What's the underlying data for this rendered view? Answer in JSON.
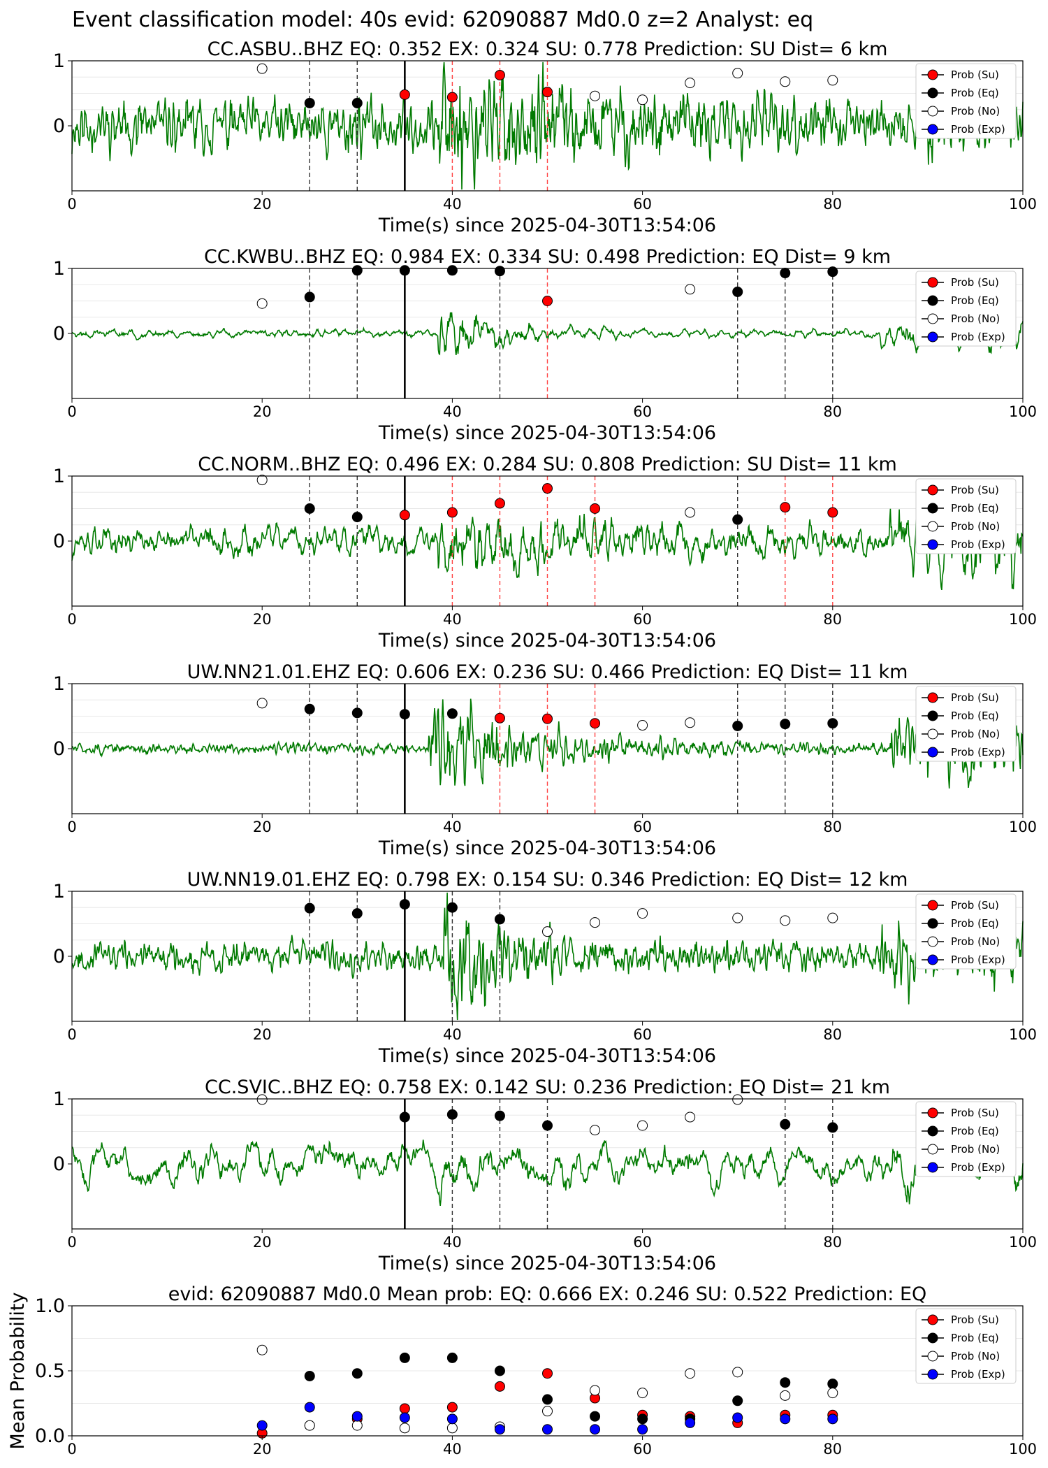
{
  "suptitle": "Event classification model: 40s evid: 62090887 Md0.0 z=2 Analyst: eq",
  "colors": {
    "waveform": "#007a00",
    "su": "#ff0000",
    "eq": "#000000",
    "no": "#ffffff",
    "exp": "#0000ff",
    "pick_su": "#ff4444",
    "pick_eq": "#333333",
    "origin": "#000000"
  },
  "legend": [
    "Prob (Su)",
    "Prob (Eq)",
    "Prob (No)",
    "Prob (Exp)"
  ],
  "chart_data": [
    {
      "type": "line",
      "title": "CC.ASBU..BHZ   EQ: 0.352  EX: 0.324  SU: 0.778   Prediction: SU    Dist= 6 km",
      "xlabel": "Time(s) since 2025-04-30T13:54:06",
      "xlim": [
        0,
        100
      ],
      "ylim": [
        -1,
        1
      ],
      "xticks": [
        "0",
        "20",
        "40",
        "60",
        "80",
        "100"
      ],
      "yticks": [
        "0",
        "1"
      ],
      "waveform": {
        "amp": 0.32,
        "noise": 0.85,
        "onset": 38.5,
        "burst": 0.55,
        "decay": 12,
        "seed": 11,
        "tail_start": 0,
        "tail_amp": 0,
        "smooth": 1
      },
      "origin_line": 35,
      "picks": [
        {
          "x": 25,
          "type": "eq"
        },
        {
          "x": 30,
          "type": "eq"
        },
        {
          "x": 40,
          "type": "su"
        },
        {
          "x": 45,
          "type": "su"
        },
        {
          "x": 50,
          "type": "su"
        }
      ],
      "points": [
        {
          "x": 20,
          "y": 0.88,
          "type": "no"
        },
        {
          "x": 25,
          "y": 0.35,
          "type": "eq"
        },
        {
          "x": 30,
          "y": 0.35,
          "type": "eq"
        },
        {
          "x": 35,
          "y": 0.48,
          "type": "su"
        },
        {
          "x": 40,
          "y": 0.44,
          "type": "su"
        },
        {
          "x": 45,
          "y": 0.78,
          "type": "su"
        },
        {
          "x": 50,
          "y": 0.52,
          "type": "su"
        },
        {
          "x": 55,
          "y": 0.46,
          "type": "no"
        },
        {
          "x": 60,
          "y": 0.4,
          "type": "no"
        },
        {
          "x": 65,
          "y": 0.66,
          "type": "no"
        },
        {
          "x": 70,
          "y": 0.81,
          "type": "no"
        },
        {
          "x": 75,
          "y": 0.68,
          "type": "no"
        },
        {
          "x": 80,
          "y": 0.7,
          "type": "no"
        }
      ]
    },
    {
      "type": "line",
      "title": "CC.KWBU..BHZ   EQ: 0.984  EX: 0.334  SU: 0.498   Prediction: EQ    Dist= 9 km",
      "xlabel": "Time(s) since 2025-04-30T13:54:06",
      "xlim": [
        0,
        100
      ],
      "ylim": [
        -1,
        1
      ],
      "xticks": [
        "0",
        "20",
        "40",
        "60",
        "80",
        "100"
      ],
      "yticks": [
        "0",
        "1"
      ],
      "waveform": {
        "amp": 0.08,
        "noise": 0.4,
        "onset": 38.5,
        "burst": 0.75,
        "decay": 5,
        "seed": 23,
        "tail_start": 85,
        "tail_amp": 0.25,
        "smooth": 3
      },
      "origin_line": 35,
      "picks": [
        {
          "x": 25,
          "type": "eq"
        },
        {
          "x": 30,
          "type": "eq"
        },
        {
          "x": 45,
          "type": "eq"
        },
        {
          "x": 50,
          "type": "su"
        },
        {
          "x": 70,
          "type": "eq"
        },
        {
          "x": 75,
          "type": "eq"
        },
        {
          "x": 80,
          "type": "eq"
        }
      ],
      "points": [
        {
          "x": 20,
          "y": 0.46,
          "type": "no"
        },
        {
          "x": 25,
          "y": 0.56,
          "type": "eq"
        },
        {
          "x": 30,
          "y": 0.97,
          "type": "eq"
        },
        {
          "x": 35,
          "y": 0.97,
          "type": "eq"
        },
        {
          "x": 40,
          "y": 0.97,
          "type": "eq"
        },
        {
          "x": 45,
          "y": 0.96,
          "type": "eq"
        },
        {
          "x": 50,
          "y": 0.5,
          "type": "su"
        },
        {
          "x": 65,
          "y": 0.68,
          "type": "no"
        },
        {
          "x": 70,
          "y": 0.64,
          "type": "eq"
        },
        {
          "x": 75,
          "y": 0.93,
          "type": "eq"
        },
        {
          "x": 80,
          "y": 0.95,
          "type": "eq"
        }
      ]
    },
    {
      "type": "line",
      "title": "CC.NORM..BHZ   EQ: 0.496  EX: 0.284  SU: 0.808   Prediction: SU    Dist= 11 km",
      "xlabel": "Time(s) since 2025-04-30T13:54:06",
      "xlim": [
        0,
        100
      ],
      "ylim": [
        -1,
        1
      ],
      "xticks": [
        "0",
        "20",
        "40",
        "60",
        "80",
        "100"
      ],
      "yticks": [
        "0",
        "1"
      ],
      "waveform": {
        "amp": 0.22,
        "noise": 0.6,
        "onset": 38.5,
        "burst": 0.45,
        "decay": 14,
        "seed": 37,
        "tail_start": 86,
        "tail_amp": 0.3,
        "smooth": 2
      },
      "origin_line": 35,
      "picks": [
        {
          "x": 25,
          "type": "eq"
        },
        {
          "x": 30,
          "type": "eq"
        },
        {
          "x": 40,
          "type": "su"
        },
        {
          "x": 45,
          "type": "su"
        },
        {
          "x": 50,
          "type": "su"
        },
        {
          "x": 55,
          "type": "su"
        },
        {
          "x": 70,
          "type": "eq"
        },
        {
          "x": 75,
          "type": "su"
        },
        {
          "x": 80,
          "type": "su"
        }
      ],
      "points": [
        {
          "x": 20,
          "y": 0.94,
          "type": "no"
        },
        {
          "x": 25,
          "y": 0.5,
          "type": "eq"
        },
        {
          "x": 30,
          "y": 0.37,
          "type": "eq"
        },
        {
          "x": 35,
          "y": 0.4,
          "type": "su"
        },
        {
          "x": 40,
          "y": 0.44,
          "type": "su"
        },
        {
          "x": 45,
          "y": 0.58,
          "type": "su"
        },
        {
          "x": 50,
          "y": 0.81,
          "type": "su"
        },
        {
          "x": 55,
          "y": 0.5,
          "type": "su"
        },
        {
          "x": 65,
          "y": 0.44,
          "type": "no"
        },
        {
          "x": 70,
          "y": 0.33,
          "type": "eq"
        },
        {
          "x": 75,
          "y": 0.52,
          "type": "su"
        },
        {
          "x": 80,
          "y": 0.44,
          "type": "su"
        }
      ]
    },
    {
      "type": "line",
      "title": "UW.NN21.01.EHZ   EQ: 0.606  EX: 0.236  SU: 0.466   Prediction: EQ    Dist= 11 km",
      "xlabel": "Time(s) since 2025-04-30T13:54:06",
      "xlim": [
        0,
        100
      ],
      "ylim": [
        -1,
        1
      ],
      "xticks": [
        "0",
        "20",
        "40",
        "60",
        "80",
        "100"
      ],
      "yticks": [
        "0",
        "1"
      ],
      "waveform": {
        "amp": 0.06,
        "noise": 0.9,
        "onset": 37.5,
        "burst": 0.7,
        "decay": 9,
        "seed": 51,
        "tail_start": 86,
        "tail_amp": 0.3,
        "smooth": 1
      },
      "origin_line": 35,
      "picks": [
        {
          "x": 25,
          "type": "eq"
        },
        {
          "x": 30,
          "type": "eq"
        },
        {
          "x": 45,
          "type": "su"
        },
        {
          "x": 50,
          "type": "su"
        },
        {
          "x": 55,
          "type": "su"
        },
        {
          "x": 70,
          "type": "eq"
        },
        {
          "x": 75,
          "type": "eq"
        },
        {
          "x": 80,
          "type": "eq"
        }
      ],
      "points": [
        {
          "x": 20,
          "y": 0.7,
          "type": "no"
        },
        {
          "x": 25,
          "y": 0.61,
          "type": "eq"
        },
        {
          "x": 30,
          "y": 0.55,
          "type": "eq"
        },
        {
          "x": 35,
          "y": 0.53,
          "type": "eq"
        },
        {
          "x": 40,
          "y": 0.54,
          "type": "eq"
        },
        {
          "x": 45,
          "y": 0.47,
          "type": "su"
        },
        {
          "x": 50,
          "y": 0.46,
          "type": "su"
        },
        {
          "x": 55,
          "y": 0.39,
          "type": "su"
        },
        {
          "x": 60,
          "y": 0.36,
          "type": "no"
        },
        {
          "x": 65,
          "y": 0.4,
          "type": "no"
        },
        {
          "x": 70,
          "y": 0.35,
          "type": "eq"
        },
        {
          "x": 75,
          "y": 0.38,
          "type": "eq"
        },
        {
          "x": 80,
          "y": 0.39,
          "type": "eq"
        }
      ]
    },
    {
      "type": "line",
      "title": "UW.NN19.01.EHZ   EQ: 0.798  EX: 0.154  SU: 0.346   Prediction: EQ    Dist= 12 km",
      "xlabel": "Time(s) since 2025-04-30T13:54:06",
      "xlim": [
        0,
        100
      ],
      "ylim": [
        -1,
        1
      ],
      "xticks": [
        "0",
        "20",
        "40",
        "60",
        "80",
        "100"
      ],
      "yticks": [
        "0",
        "1"
      ],
      "waveform": {
        "amp": 0.18,
        "noise": 0.8,
        "onset": 39,
        "burst": 0.55,
        "decay": 8,
        "seed": 67,
        "tail_start": 85,
        "tail_amp": 0.2,
        "smooth": 1
      },
      "origin_line": 35,
      "picks": [
        {
          "x": 25,
          "type": "eq"
        },
        {
          "x": 30,
          "type": "eq"
        },
        {
          "x": 40,
          "type": "eq"
        },
        {
          "x": 45,
          "type": "eq"
        }
      ],
      "points": [
        {
          "x": 25,
          "y": 0.74,
          "type": "eq"
        },
        {
          "x": 30,
          "y": 0.66,
          "type": "eq"
        },
        {
          "x": 35,
          "y": 0.8,
          "type": "eq"
        },
        {
          "x": 40,
          "y": 0.75,
          "type": "eq"
        },
        {
          "x": 45,
          "y": 0.57,
          "type": "eq"
        },
        {
          "x": 50,
          "y": 0.38,
          "type": "no"
        },
        {
          "x": 55,
          "y": 0.52,
          "type": "no"
        },
        {
          "x": 60,
          "y": 0.66,
          "type": "no"
        },
        {
          "x": 70,
          "y": 0.59,
          "type": "no"
        },
        {
          "x": 75,
          "y": 0.55,
          "type": "no"
        },
        {
          "x": 80,
          "y": 0.59,
          "type": "no"
        }
      ]
    },
    {
      "type": "line",
      "title": "CC.SVIC..BHZ   EQ: 0.758  EX: 0.142  SU: 0.236   Prediction: EQ    Dist= 21 km",
      "xlabel": "Time(s) since 2025-04-30T13:54:06",
      "xlim": [
        0,
        100
      ],
      "ylim": [
        -1,
        1
      ],
      "xticks": [
        "0",
        "20",
        "40",
        "60",
        "80",
        "100"
      ],
      "yticks": [
        "0",
        "1"
      ],
      "waveform": {
        "amp": 0.5,
        "noise": 0.25,
        "onset": 38.5,
        "burst": 0.2,
        "decay": 10,
        "seed": 83,
        "tail_start": 86,
        "tail_amp": 0.3,
        "smooth": 6
      },
      "origin_line": 35,
      "picks": [
        {
          "x": 40,
          "type": "eq"
        },
        {
          "x": 45,
          "type": "eq"
        },
        {
          "x": 50,
          "type": "eq"
        },
        {
          "x": 75,
          "type": "eq"
        },
        {
          "x": 80,
          "type": "eq"
        }
      ],
      "points": [
        {
          "x": 20,
          "y": 0.99,
          "type": "no"
        },
        {
          "x": 35,
          "y": 0.72,
          "type": "eq"
        },
        {
          "x": 40,
          "y": 0.76,
          "type": "eq"
        },
        {
          "x": 45,
          "y": 0.74,
          "type": "eq"
        },
        {
          "x": 50,
          "y": 0.59,
          "type": "eq"
        },
        {
          "x": 55,
          "y": 0.52,
          "type": "no"
        },
        {
          "x": 60,
          "y": 0.59,
          "type": "no"
        },
        {
          "x": 65,
          "y": 0.72,
          "type": "no"
        },
        {
          "x": 70,
          "y": 0.99,
          "type": "no"
        },
        {
          "x": 75,
          "y": 0.61,
          "type": "eq"
        },
        {
          "x": 80,
          "y": 0.56,
          "type": "eq"
        }
      ]
    },
    {
      "type": "scatter",
      "title": "evid: 62090887  Md0.0   Mean prob:   EQ: 0.666  EX: 0.246  SU: 0.522   Prediction: EQ",
      "xlabel": "",
      "ylabel": "Mean Probability",
      "xlim": [
        0,
        100
      ],
      "ylim": [
        0,
        1
      ],
      "xticks": [
        "0",
        "20",
        "40",
        "60",
        "80",
        "100"
      ],
      "yticks": [
        "0.0",
        "0.5",
        "1.0"
      ],
      "series": [
        {
          "name": "Prob (Su)",
          "type": "su",
          "x": [
            20,
            25,
            30,
            35,
            40,
            45,
            50,
            55,
            60,
            65,
            70,
            75,
            80
          ],
          "y": [
            0.02,
            0.08,
            0.13,
            0.21,
            0.22,
            0.38,
            0.48,
            0.29,
            0.16,
            0.15,
            0.1,
            0.16,
            0.16
          ]
        },
        {
          "name": "Prob (Eq)",
          "type": "eq",
          "x": [
            25,
            30,
            35,
            40,
            45,
            50,
            55,
            60,
            65,
            70,
            75,
            80
          ],
          "y": [
            0.46,
            0.48,
            0.6,
            0.6,
            0.5,
            0.28,
            0.15,
            0.13,
            0.13,
            0.27,
            0.41,
            0.4
          ]
        },
        {
          "name": "Prob (No)",
          "type": "no",
          "x": [
            20,
            25,
            30,
            35,
            40,
            45,
            50,
            55,
            60,
            65,
            70,
            75,
            80
          ],
          "y": [
            0.66,
            0.08,
            0.08,
            0.06,
            0.06,
            0.07,
            0.19,
            0.35,
            0.33,
            0.48,
            0.49,
            0.31,
            0.33
          ]
        },
        {
          "name": "Prob (Exp)",
          "type": "exp",
          "x": [
            20,
            25,
            30,
            35,
            40,
            45,
            50,
            55,
            60,
            65,
            70,
            75,
            80
          ],
          "y": [
            0.08,
            0.22,
            0.15,
            0.14,
            0.13,
            0.05,
            0.05,
            0.05,
            0.05,
            0.1,
            0.14,
            0.13,
            0.13
          ]
        }
      ]
    }
  ]
}
